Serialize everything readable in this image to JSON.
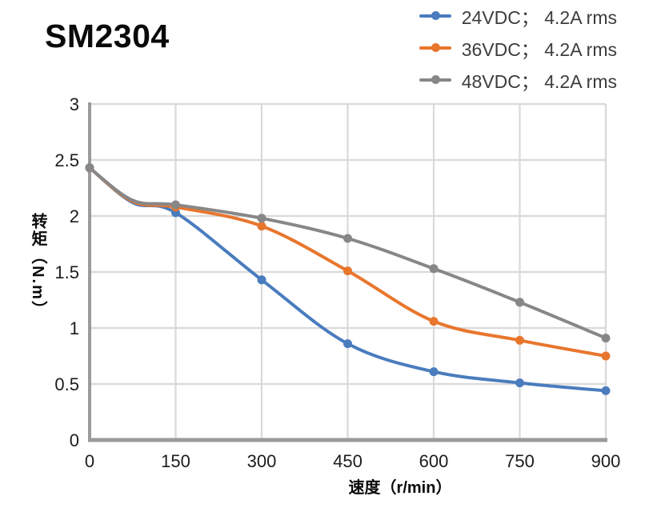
{
  "title": "SM2304",
  "chart_data": {
    "type": "line",
    "title": "SM2304",
    "xlabel": "速度（r/min）",
    "ylabel": "转矩（N.m）",
    "xlim": [
      0,
      900
    ],
    "ylim": [
      0,
      3
    ],
    "x_ticks": [
      0,
      150,
      300,
      450,
      600,
      750,
      900
    ],
    "y_ticks": [
      0,
      0.5,
      1,
      1.5,
      2,
      2.5,
      3
    ],
    "grid": true,
    "legend_position": "top-right",
    "x": [
      0,
      75,
      150,
      300,
      450,
      600,
      750,
      900
    ],
    "marker_x": [
      0,
      150,
      300,
      450,
      600,
      750,
      900
    ],
    "series": [
      {
        "name": "24VDC； 4.2A rms",
        "color": "#4A7CBE",
        "values": [
          2.43,
          2.12,
          2.03,
          1.43,
          0.86,
          0.61,
          0.51,
          0.44
        ]
      },
      {
        "name": "36VDC； 4.2A rms",
        "color": "#E8762D",
        "values": [
          2.43,
          2.13,
          2.08,
          1.91,
          1.51,
          1.06,
          0.89,
          0.75
        ]
      },
      {
        "name": "48VDC； 4.2A rms",
        "color": "#878787",
        "values": [
          2.43,
          2.14,
          2.1,
          1.98,
          1.8,
          1.53,
          1.23,
          0.91
        ]
      }
    ],
    "colors": {
      "grid": "#D9D9D9",
      "axis": "#9B9B9B",
      "tick_label": "#1C1C1C",
      "legend_text": "#3D3D3D",
      "background": "#FFFFFF"
    }
  }
}
